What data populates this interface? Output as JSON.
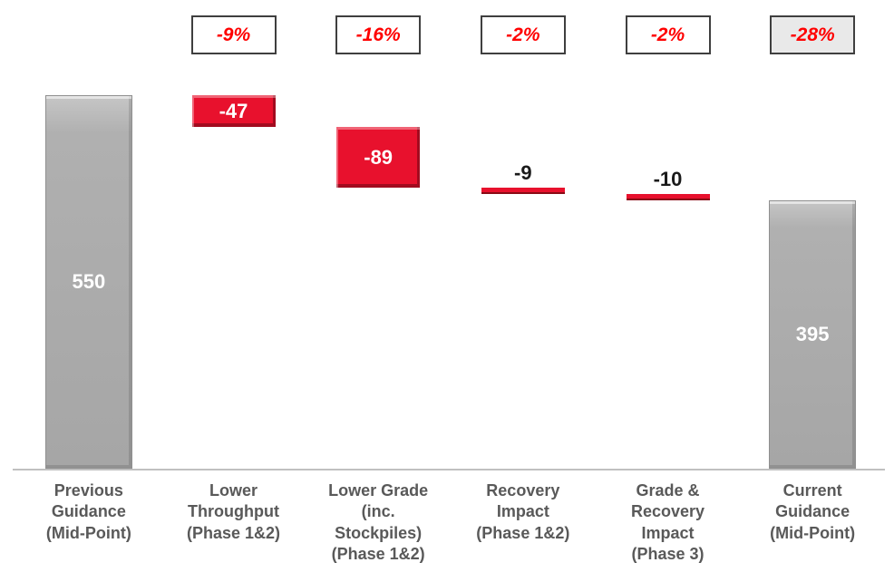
{
  "chart_data": {
    "type": "waterfall",
    "title": "",
    "ylim": [
      0,
      550
    ],
    "legend": "none",
    "grid": "off",
    "columns": [
      {
        "id": "previous-guidance",
        "kind": "total",
        "value": 550,
        "display": "550",
        "pct": null,
        "pct_shaded": false,
        "label": "Previous Guidance (Mid-Point)",
        "label_lines": [
          "Previous",
          "Guidance",
          "(Mid-Point)"
        ]
      },
      {
        "id": "lower-throughput",
        "kind": "decrease",
        "value": -47,
        "display": "-47",
        "pct": "-9%",
        "pct_shaded": false,
        "label": "Lower Throughput (Phase 1&2)",
        "label_lines": [
          "Lower",
          "Throughput",
          "(Phase 1&2)"
        ]
      },
      {
        "id": "lower-grade",
        "kind": "decrease",
        "value": -89,
        "display": "-89",
        "pct": "-16%",
        "pct_shaded": false,
        "label": "Lower Grade (inc. Stockpiles) (Phase 1&2)",
        "label_lines": [
          "Lower Grade",
          "(inc.",
          "Stockpiles)",
          "(Phase 1&2)"
        ]
      },
      {
        "id": "recovery-impact",
        "kind": "decrease",
        "value": -9,
        "display": "-9",
        "pct": "-2%",
        "pct_shaded": false,
        "label": "Recovery Impact (Phase 1&2)",
        "label_lines": [
          "Recovery",
          "Impact",
          "(Phase 1&2)"
        ]
      },
      {
        "id": "grade-recovery-impact",
        "kind": "decrease",
        "value": -10,
        "display": "-10",
        "pct": "-2%",
        "pct_shaded": false,
        "label": "Grade & Recovery Impact (Phase 3)",
        "label_lines": [
          "Grade &",
          "Recovery",
          "Impact",
          "(Phase 3)"
        ]
      },
      {
        "id": "current-guidance",
        "kind": "total",
        "value": 395,
        "display": "395",
        "pct": "-28%",
        "pct_shaded": true,
        "label": "Current Guidance (Mid-Point)",
        "label_lines": [
          "Current",
          "Guidance",
          "(Mid-Point)"
        ]
      }
    ],
    "colors": {
      "total_bar": "#a6a6a6",
      "decrease_bar": "#e8112d",
      "decrease_dark": "#8a0b16",
      "pct_text": "#ff0000",
      "pct_box_shaded_bg": "#e9e9e9",
      "label_text": "#595959",
      "value_inside_text": "#ffffff",
      "value_above_text": "#1a1a1a"
    }
  }
}
